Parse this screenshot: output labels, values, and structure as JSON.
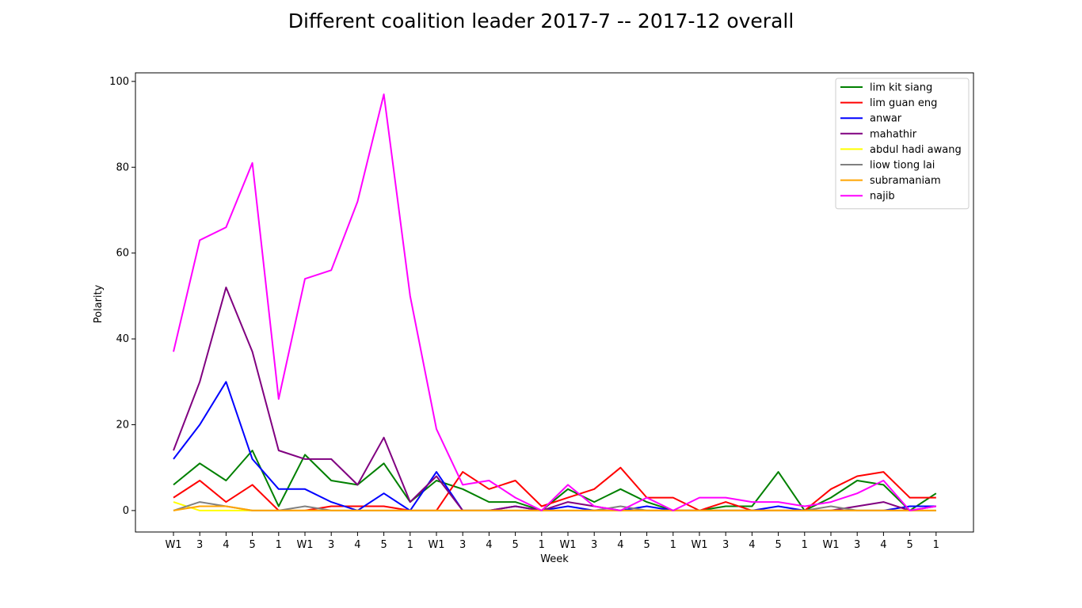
{
  "chart_data": {
    "type": "line",
    "title": "Different coalition leader 2017-7 -- 2017-12 overall",
    "xlabel": "Week",
    "ylabel": "Polarity",
    "categories": [
      "W1",
      "3",
      "4",
      "5",
      "1",
      "W1",
      "3",
      "4",
      "5",
      "1",
      "W1",
      "3",
      "4",
      "5",
      "1",
      "W1",
      "3",
      "4",
      "5",
      "1",
      "W1",
      "3",
      "4",
      "5",
      "1",
      "W1",
      "3",
      "4",
      "5",
      "1"
    ],
    "ylim": [
      -5,
      102
    ],
    "yticks": [
      0,
      20,
      40,
      60,
      80,
      100
    ],
    "grid": false,
    "legend_position": "top-right",
    "series": [
      {
        "name": "lim kit siang",
        "color": "#008000",
        "values": [
          6,
          11,
          7,
          14,
          1,
          13,
          7,
          6,
          11,
          2,
          7,
          5,
          2,
          2,
          0,
          5,
          2,
          5,
          2,
          0,
          0,
          1,
          1,
          9,
          0,
          3,
          7,
          6,
          0,
          4
        ]
      },
      {
        "name": "lim guan eng",
        "color": "#ff0000",
        "values": [
          3,
          7,
          2,
          6,
          0,
          0,
          1,
          1,
          1,
          0,
          0,
          9,
          5,
          7,
          1,
          3,
          5,
          10,
          3,
          3,
          0,
          2,
          0,
          0,
          0,
          5,
          8,
          9,
          3,
          3
        ]
      },
      {
        "name": "anwar",
        "color": "#0000ff",
        "values": [
          12,
          20,
          30,
          12,
          5,
          5,
          2,
          0,
          4,
          0,
          9,
          0,
          0,
          1,
          0,
          1,
          0,
          0,
          1,
          0,
          0,
          0,
          0,
          1,
          0,
          0,
          0,
          0,
          1,
          1
        ]
      },
      {
        "name": "mahathir",
        "color": "#800080",
        "values": [
          14,
          30,
          52,
          37,
          14,
          12,
          12,
          6,
          17,
          2,
          8,
          0,
          0,
          1,
          0,
          2,
          1,
          0,
          0,
          0,
          0,
          0,
          0,
          0,
          0,
          0,
          1,
          2,
          0,
          1
        ]
      },
      {
        "name": "abdul hadi awang",
        "color": "#ffff00",
        "values": [
          2,
          0,
          0,
          0,
          0,
          0,
          0,
          0,
          0,
          0,
          0,
          0,
          0,
          0,
          0,
          0,
          0,
          0,
          0,
          0,
          0,
          0,
          0,
          0,
          0,
          0,
          0,
          0,
          0,
          0
        ]
      },
      {
        "name": "liow tiong lai",
        "color": "#808080",
        "values": [
          0,
          2,
          1,
          0,
          0,
          1,
          0,
          0,
          0,
          0,
          0,
          0,
          0,
          0,
          0,
          0,
          0,
          1,
          0,
          0,
          0,
          0,
          0,
          0,
          0,
          1,
          0,
          0,
          0,
          0
        ]
      },
      {
        "name": "subramaniam",
        "color": "#ffa500",
        "values": [
          0,
          1,
          1,
          0,
          0,
          0,
          0,
          0,
          0,
          0,
          0,
          0,
          0,
          0,
          0,
          0,
          0,
          0,
          0,
          0,
          0,
          0,
          0,
          0,
          0,
          0,
          0,
          0,
          0,
          0
        ]
      },
      {
        "name": "najib",
        "color": "#ff00ff",
        "values": [
          37,
          63,
          66,
          81,
          26,
          54,
          56,
          72,
          97,
          50,
          19,
          6,
          7,
          3,
          0,
          6,
          1,
          0,
          3,
          0,
          3,
          3,
          2,
          2,
          1,
          2,
          4,
          7,
          0,
          1
        ]
      }
    ]
  }
}
